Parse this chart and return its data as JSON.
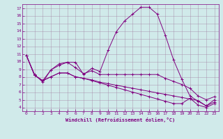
{
  "xlabel": "Windchill (Refroidissement éolien,°C)",
  "ylabel": "",
  "background_color": "#d0eaea",
  "line_color": "#800080",
  "grid_color": "#a080a0",
  "xlim": [
    -0.5,
    23.5
  ],
  "ylim": [
    3.5,
    17.5
  ],
  "xticks": [
    0,
    1,
    2,
    3,
    4,
    5,
    6,
    7,
    8,
    9,
    10,
    11,
    12,
    13,
    14,
    15,
    16,
    17,
    18,
    19,
    20,
    21,
    22,
    23
  ],
  "yticks": [
    4,
    5,
    6,
    7,
    8,
    9,
    10,
    11,
    12,
    13,
    14,
    15,
    16,
    17
  ],
  "series": [
    [
      10.8,
      8.3,
      7.3,
      8.9,
      9.7,
      9.9,
      9.9,
      8.3,
      9.1,
      8.7,
      11.5,
      13.9,
      15.3,
      16.2,
      17.1,
      17.1,
      16.2,
      13.4,
      10.2,
      7.7,
      5.5,
      4.8,
      4.2,
      5.0
    ],
    [
      10.8,
      8.2,
      7.5,
      8.9,
      9.5,
      9.9,
      9.2,
      8.4,
      8.8,
      8.3,
      8.3,
      8.3,
      8.3,
      8.3,
      8.3,
      8.3,
      8.3,
      7.8,
      7.4,
      7.0,
      6.5,
      5.5,
      5.0,
      5.4
    ],
    [
      10.8,
      8.2,
      7.5,
      8.0,
      8.5,
      8.5,
      8.0,
      7.8,
      7.6,
      7.3,
      7.1,
      6.9,
      6.7,
      6.5,
      6.3,
      6.1,
      5.9,
      5.7,
      5.5,
      5.3,
      5.1,
      4.9,
      4.2,
      4.7
    ],
    [
      10.8,
      8.2,
      7.5,
      8.0,
      8.5,
      8.5,
      8.0,
      7.8,
      7.5,
      7.2,
      6.9,
      6.6,
      6.3,
      6.0,
      5.7,
      5.4,
      5.1,
      4.8,
      4.5,
      4.5,
      5.2,
      4.3,
      4.0,
      4.5
    ]
  ]
}
